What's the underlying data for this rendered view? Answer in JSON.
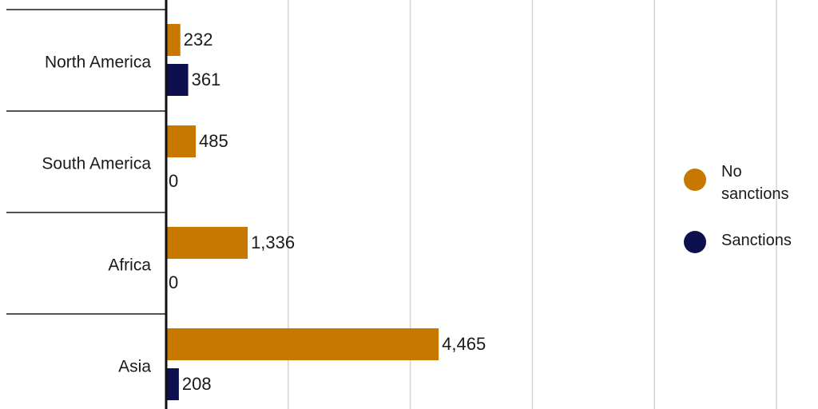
{
  "chart_data": {
    "type": "bar",
    "orientation": "horizontal",
    "categories": [
      "North America",
      "South America",
      "Africa",
      "Asia"
    ],
    "series": [
      {
        "name": "No sanctions",
        "values": [
          232,
          485,
          1336,
          4465
        ],
        "labels": [
          "232",
          "485",
          "1,336",
          "4,465"
        ]
      },
      {
        "name": "Sanctions",
        "values": [
          361,
          0,
          0,
          208
        ],
        "labels": [
          "361",
          "0",
          "0",
          "208"
        ]
      }
    ],
    "xlim": [
      0,
      10000
    ],
    "grid": true,
    "legend_position": "right",
    "colors": {
      "No sanctions": "#c77800",
      "Sanctions": "#0d0f4f"
    }
  }
}
